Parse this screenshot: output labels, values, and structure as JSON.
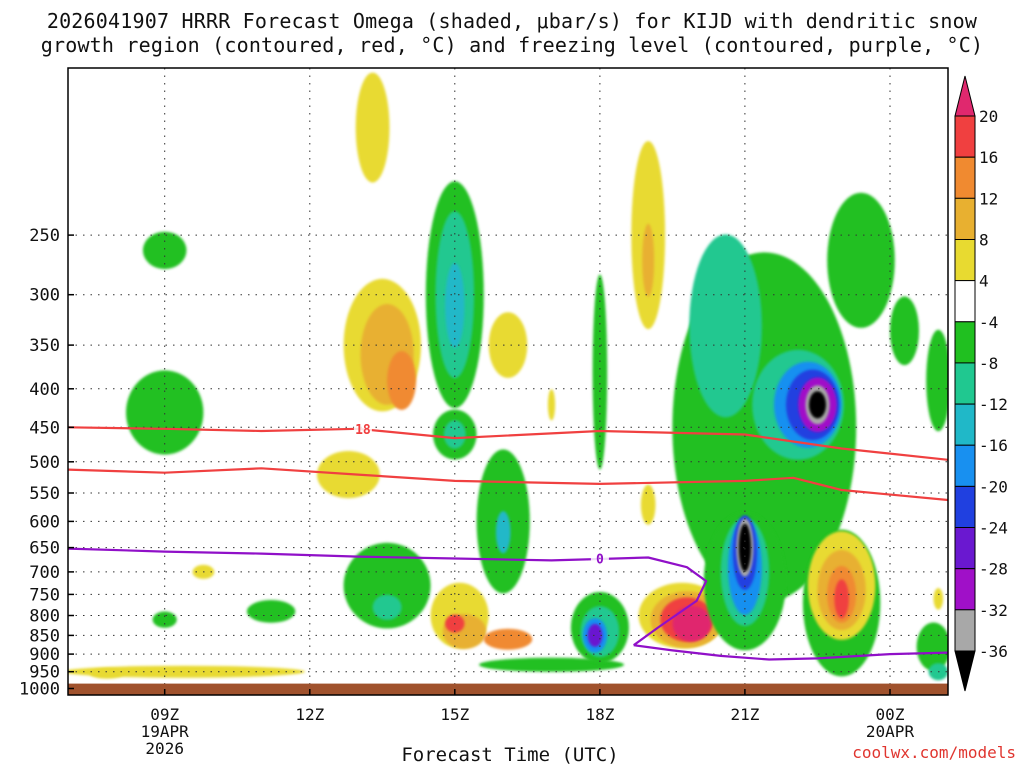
{
  "chart_data": {
    "type": "heatmap",
    "title_line_1": "2026041907 HRRR Forecast Omega (shaded, μbar/s) for KIJD with dendritic snow",
    "title_line_2": "growth region (contoured, red, °C) and freezing level (contoured, purple, °C)",
    "xlabel": "Forecast Time (UTC)",
    "ylabel": "",
    "watermark": "coolwx.com/models",
    "x_range_hours_utc": [
      7.0,
      25.2
    ],
    "y_range_hpa": [
      150,
      1020
    ],
    "y_ticks": [
      250,
      300,
      350,
      400,
      450,
      500,
      550,
      600,
      650,
      700,
      750,
      800,
      850,
      900,
      950,
      1000
    ],
    "x_ticks": [
      {
        "hour": 9,
        "label": "09Z",
        "sub1": "19APR",
        "sub2": "2026"
      },
      {
        "hour": 12,
        "label": "12Z",
        "sub1": "",
        "sub2": ""
      },
      {
        "hour": 15,
        "label": "15Z",
        "sub1": "",
        "sub2": ""
      },
      {
        "hour": 18,
        "label": "18Z",
        "sub1": "",
        "sub2": ""
      },
      {
        "hour": 21,
        "label": "21Z",
        "sub1": "",
        "sub2": ""
      },
      {
        "hour": 24,
        "label": "00Z",
        "sub1": "20APR",
        "sub2": ""
      }
    ],
    "colorbar": {
      "levels": [
        20,
        16,
        12,
        8,
        4,
        -4,
        -8,
        -12,
        -16,
        -20,
        -24,
        -28,
        -32,
        -36
      ],
      "colors": [
        "#e0286e",
        "#f04040",
        "#f08a30",
        "#e8b030",
        "#e8da30",
        "#ffffff",
        "#20c020",
        "#20c890",
        "#20b8c8",
        "#1890f0",
        "#2040e0",
        "#6a18d0",
        "#a010c8",
        "#a8a8a8",
        "#000000"
      ]
    },
    "omega_cells": [
      {
        "t": 9.0,
        "p": 262,
        "dt": 0.9,
        "dp": 30,
        "v": -6
      },
      {
        "t": 9.0,
        "p": 430,
        "dt": 1.6,
        "dp": 110,
        "v": -6
      },
      {
        "t": 9.4,
        "p": 950,
        "dt": 5.0,
        "dp": 35,
        "v": 5
      },
      {
        "t": 7.8,
        "p": 955,
        "dt": 0.7,
        "dp": 30,
        "v": 5
      },
      {
        "t": 9.8,
        "p": 700,
        "dt": 0.45,
        "dp": 30,
        "v": 5
      },
      {
        "t": 9.0,
        "p": 810,
        "dt": 0.5,
        "dp": 40,
        "v": -6
      },
      {
        "t": 11.2,
        "p": 790,
        "dt": 1.0,
        "dp": 55,
        "v": -6
      },
      {
        "t": 13.3,
        "p": 180,
        "dt": 0.7,
        "dp": 60,
        "v": 5
      },
      {
        "t": 13.5,
        "p": 350,
        "dt": 1.6,
        "dp": 140,
        "v": 5
      },
      {
        "t": 13.6,
        "p": 360,
        "dt": 1.1,
        "dp": 110,
        "v": 9
      },
      {
        "t": 13.9,
        "p": 390,
        "dt": 0.6,
        "dp": 70,
        "v": 13
      },
      {
        "t": 12.8,
        "p": 520,
        "dt": 1.3,
        "dp": 75,
        "v": 5
      },
      {
        "t": 13.6,
        "p": 730,
        "dt": 1.8,
        "dp": 190,
        "v": -6
      },
      {
        "t": 13.6,
        "p": 780,
        "dt": 0.6,
        "dp": 60,
        "v": -10
      },
      {
        "t": 15.0,
        "p": 300,
        "dt": 1.2,
        "dp": 200,
        "v": -6
      },
      {
        "t": 15.0,
        "p": 300,
        "dt": 0.8,
        "dp": 150,
        "v": -10
      },
      {
        "t": 15.0,
        "p": 310,
        "dt": 0.4,
        "dp": 80,
        "v": -14
      },
      {
        "t": 15.0,
        "p": 460,
        "dt": 0.9,
        "dp": 70,
        "v": -6
      },
      {
        "t": 15.0,
        "p": 460,
        "dt": 0.45,
        "dp": 40,
        "v": -10
      },
      {
        "t": 15.1,
        "p": 800,
        "dt": 1.2,
        "dp": 160,
        "v": 5
      },
      {
        "t": 15.2,
        "p": 840,
        "dt": 0.9,
        "dp": 90,
        "v": 9
      },
      {
        "t": 15.0,
        "p": 820,
        "dt": 0.4,
        "dp": 45,
        "v": 17
      },
      {
        "t": 16.1,
        "p": 860,
        "dt": 1.0,
        "dp": 55,
        "v": 13
      },
      {
        "t": 16.0,
        "p": 600,
        "dt": 1.1,
        "dp": 260,
        "v": -6
      },
      {
        "t": 16.0,
        "p": 620,
        "dt": 0.3,
        "dp": 80,
        "v": -14
      },
      {
        "t": 16.1,
        "p": 350,
        "dt": 0.8,
        "dp": 70,
        "v": 5
      },
      {
        "t": 17.0,
        "p": 930,
        "dt": 3.0,
        "dp": 40,
        "v": -6
      },
      {
        "t": 18.0,
        "p": 830,
        "dt": 1.2,
        "dp": 180,
        "v": -6
      },
      {
        "t": 18.0,
        "p": 840,
        "dt": 0.8,
        "dp": 130,
        "v": -10
      },
      {
        "t": 17.9,
        "p": 850,
        "dt": 0.5,
        "dp": 90,
        "v": -20
      },
      {
        "t": 17.9,
        "p": 850,
        "dt": 0.3,
        "dp": 60,
        "v": -28
      },
      {
        "t": 18.0,
        "p": 380,
        "dt": 0.3,
        "dp": 220,
        "v": -6
      },
      {
        "t": 17.0,
        "p": 420,
        "dt": 0.15,
        "dp": 40,
        "v": 5
      },
      {
        "t": 19.0,
        "p": 250,
        "dt": 0.7,
        "dp": 140,
        "v": 5
      },
      {
        "t": 19.0,
        "p": 270,
        "dt": 0.25,
        "dp": 60,
        "v": 9
      },
      {
        "t": 19.0,
        "p": 570,
        "dt": 0.3,
        "dp": 70,
        "v": 5
      },
      {
        "t": 19.7,
        "p": 800,
        "dt": 1.8,
        "dp": 160,
        "v": 5
      },
      {
        "t": 19.8,
        "p": 810,
        "dt": 1.5,
        "dp": 140,
        "v": 9
      },
      {
        "t": 19.8,
        "p": 810,
        "dt": 1.1,
        "dp": 110,
        "v": 17
      },
      {
        "t": 19.9,
        "p": 820,
        "dt": 0.8,
        "dp": 90,
        "v": 22
      },
      {
        "t": 21.4,
        "p": 450,
        "dt": 3.8,
        "dp": 440,
        "v": -6
      },
      {
        "t": 23.4,
        "p": 270,
        "dt": 1.4,
        "dp": 110,
        "v": -6
      },
      {
        "t": 20.6,
        "p": 330,
        "dt": 1.5,
        "dp": 180,
        "v": -10
      },
      {
        "t": 22.1,
        "p": 420,
        "dt": 1.9,
        "dp": 140,
        "v": -10
      },
      {
        "t": 22.3,
        "p": 420,
        "dt": 1.4,
        "dp": 110,
        "v": -18
      },
      {
        "t": 22.4,
        "p": 420,
        "dt": 1.1,
        "dp": 90,
        "v": -22
      },
      {
        "t": 22.5,
        "p": 420,
        "dt": 0.8,
        "dp": 70,
        "v": -30
      },
      {
        "t": 22.5,
        "p": 420,
        "dt": 0.5,
        "dp": 50,
        "v": -34
      },
      {
        "t": 22.5,
        "p": 420,
        "dt": 0.35,
        "dp": 35,
        "v": -40
      },
      {
        "t": 21.0,
        "p": 720,
        "dt": 1.7,
        "dp": 300,
        "v": -6
      },
      {
        "t": 21.0,
        "p": 700,
        "dt": 1.0,
        "dp": 230,
        "v": -10
      },
      {
        "t": 21.0,
        "p": 690,
        "dt": 0.7,
        "dp": 200,
        "v": -18
      },
      {
        "t": 21.0,
        "p": 660,
        "dt": 0.5,
        "dp": 150,
        "v": -24
      },
      {
        "t": 21.0,
        "p": 650,
        "dt": 0.35,
        "dp": 115,
        "v": -34
      },
      {
        "t": 21.0,
        "p": 650,
        "dt": 0.25,
        "dp": 95,
        "v": -40
      },
      {
        "t": 23.0,
        "p": 770,
        "dt": 1.6,
        "dp": 340,
        "v": -6
      },
      {
        "t": 23.0,
        "p": 730,
        "dt": 1.4,
        "dp": 240,
        "v": 5
      },
      {
        "t": 23.0,
        "p": 740,
        "dt": 1.0,
        "dp": 180,
        "v": 9
      },
      {
        "t": 23.0,
        "p": 750,
        "dt": 0.6,
        "dp": 130,
        "v": 13
      },
      {
        "t": 23.0,
        "p": 760,
        "dt": 0.3,
        "dp": 90,
        "v": 17
      },
      {
        "t": 24.3,
        "p": 335,
        "dt": 0.6,
        "dp": 70,
        "v": -6
      },
      {
        "t": 25.0,
        "p": 390,
        "dt": 0.5,
        "dp": 120,
        "v": -6
      },
      {
        "t": 24.9,
        "p": 880,
        "dt": 0.7,
        "dp": 130,
        "v": -6
      },
      {
        "t": 25.0,
        "p": 760,
        "dt": 0.2,
        "dp": 50,
        "v": 5
      },
      {
        "t": 25.0,
        "p": 950,
        "dt": 0.4,
        "dp": 50,
        "v": -10
      }
    ],
    "contours": [
      {
        "name": "dendritic-top-18",
        "color": "#f04040",
        "label": "18",
        "label_hour": 13.1,
        "x": [
          7.0,
          9.0,
          11.0,
          13.0,
          15.0,
          18.0,
          21.0,
          23.0,
          25.2
        ],
        "y": [
          450,
          452,
          455,
          452,
          465,
          455,
          460,
          480,
          497
        ]
      },
      {
        "name": "dendritic-bottom",
        "color": "#f04040",
        "label": "",
        "label_hour": 0,
        "x": [
          7.0,
          9.0,
          11.0,
          13.0,
          15.0,
          18.0,
          21.0,
          22.0,
          23.0,
          25.2
        ],
        "y": [
          512,
          517,
          510,
          520,
          530,
          535,
          530,
          525,
          545,
          562
        ]
      },
      {
        "name": "freezing-level-0",
        "color": "#9010c8",
        "label": "0",
        "label_hour": 18.0,
        "x": [
          7.0,
          9.0,
          11.0,
          13.0,
          15.0,
          17.0,
          18.0,
          19.0,
          19.8,
          20.2,
          20.0,
          19.2,
          18.7
        ],
        "y": [
          652,
          658,
          662,
          668,
          672,
          676,
          673,
          670,
          690,
          720,
          765,
          830,
          876
        ]
      },
      {
        "name": "freezing-level-0-low",
        "color": "#9010c8",
        "label": "",
        "label_hour": 0,
        "x": [
          18.7,
          19.5,
          20.5,
          21.5,
          22.5,
          24.0,
          25.2
        ],
        "y": [
          876,
          890,
          905,
          915,
          912,
          900,
          896
        ]
      }
    ],
    "ground_pressure_hpa": 985
  }
}
